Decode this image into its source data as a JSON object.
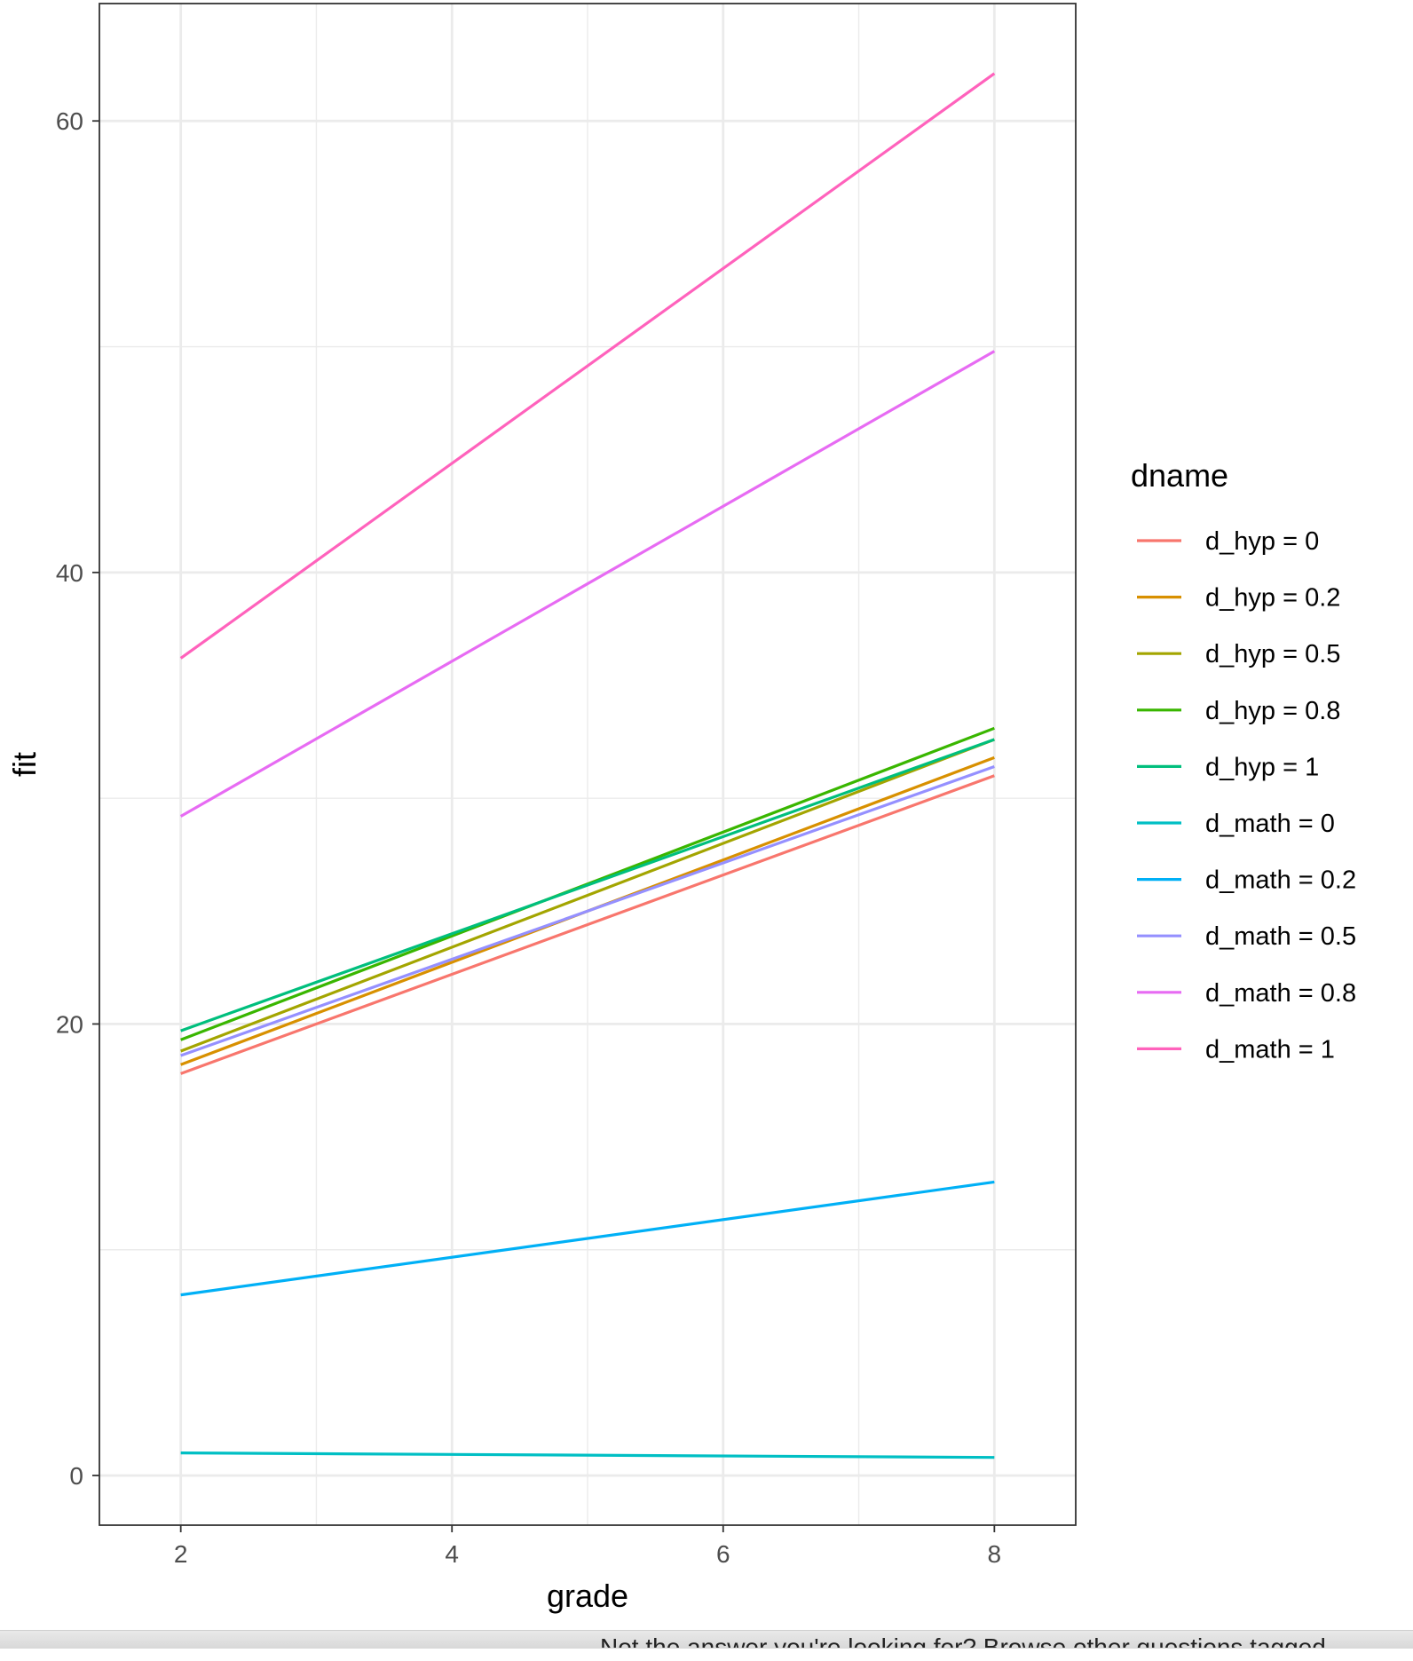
{
  "chart_data": {
    "type": "line",
    "xlabel": "grade",
    "ylabel": "fit",
    "xlim": [
      1.4,
      8.6
    ],
    "ylim": [
      -2.2,
      65.2
    ],
    "x_ticks": [
      2,
      4,
      6,
      8
    ],
    "y_ticks": [
      0,
      20,
      40,
      60
    ],
    "grid": true,
    "legend": {
      "title": "dname",
      "placement": "right"
    },
    "x": [
      2,
      8
    ],
    "series": [
      {
        "name": "d_hyp = 0",
        "color": "#F8766D",
        "values": [
          17.8,
          31.0
        ]
      },
      {
        "name": "d_hyp = 0.2",
        "color": "#D89000",
        "values": [
          18.2,
          31.8
        ]
      },
      {
        "name": "d_hyp = 0.5",
        "color": "#A3A500",
        "values": [
          18.8,
          32.6
        ]
      },
      {
        "name": "d_hyp = 0.8",
        "color": "#39B600",
        "values": [
          19.3,
          33.1
        ]
      },
      {
        "name": "d_hyp = 1",
        "color": "#00BF7D",
        "values": [
          19.7,
          32.6
        ]
      },
      {
        "name": "d_math = 0",
        "color": "#00BFC4",
        "values": [
          1.0,
          0.8
        ]
      },
      {
        "name": "d_math = 0.2",
        "color": "#00B0F6",
        "values": [
          8.0,
          13.0
        ]
      },
      {
        "name": "d_math = 0.5",
        "color": "#9590FF",
        "values": [
          18.6,
          31.4
        ]
      },
      {
        "name": "d_math = 0.8",
        "color": "#E76BF3",
        "values": [
          29.2,
          49.8
        ]
      },
      {
        "name": "d_math = 1",
        "color": "#FF62BC",
        "values": [
          36.2,
          62.1
        ]
      }
    ]
  },
  "footer_text": "Not the answer you're looking for? Browse other questions tagged"
}
